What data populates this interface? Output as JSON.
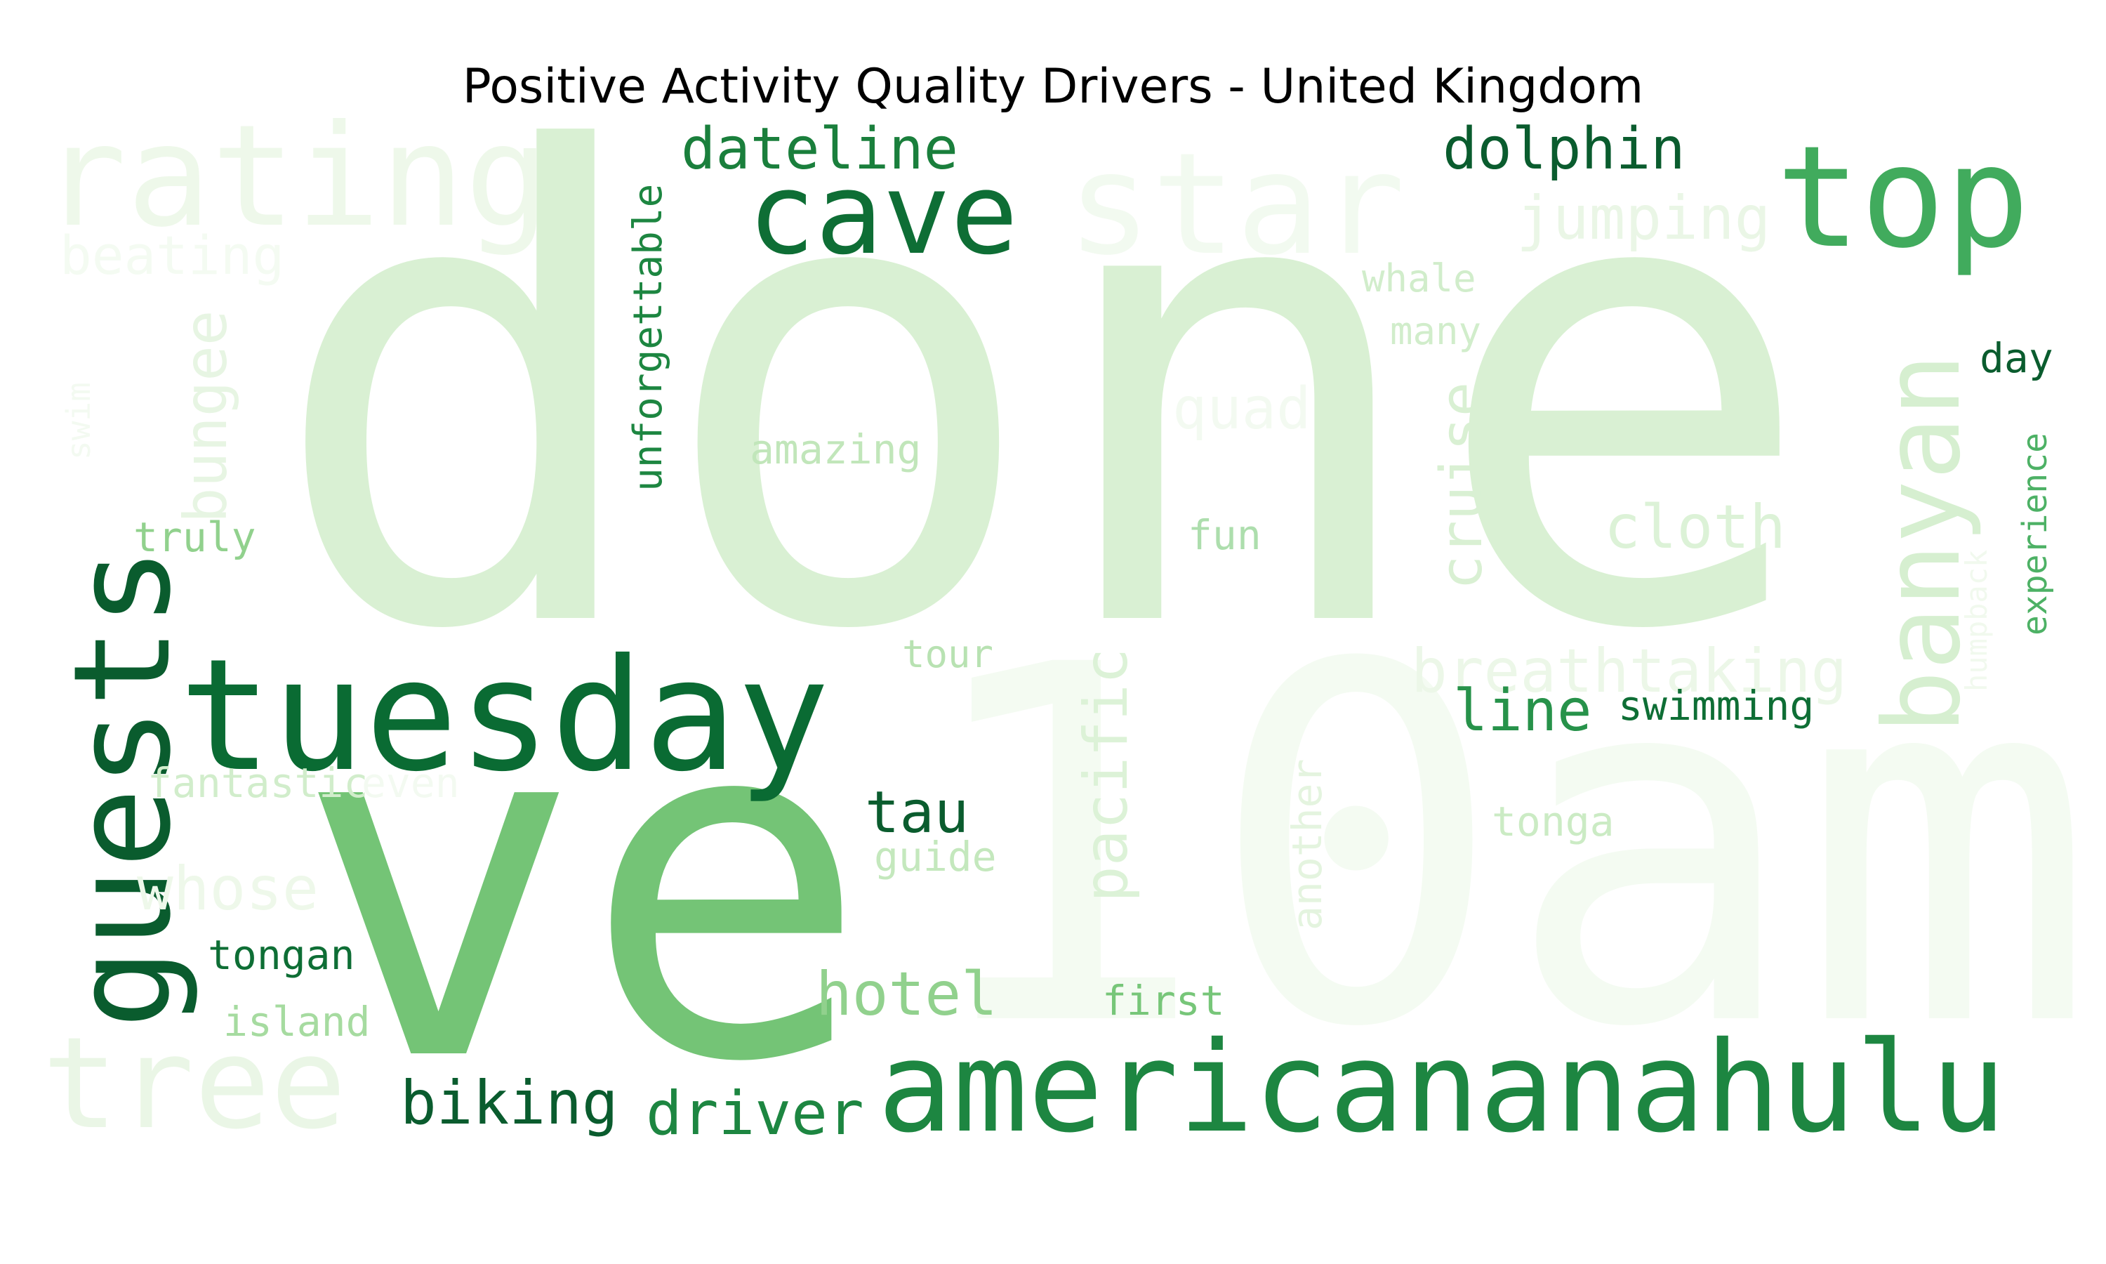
{
  "title": "Positive Activity Quality Drivers - United Kingdom",
  "chart_data": {
    "type": "wordcloud",
    "title": "Positive Activity Quality Drivers - United Kingdom",
    "colormap": "Greens",
    "words": [
      {
        "text": "done",
        "color": "#d9f0d3"
      },
      {
        "text": "10am",
        "color": "#f4fbf2"
      },
      {
        "text": "ve",
        "color": "#74c476"
      },
      {
        "text": "rating",
        "color": "#eef8ea"
      },
      {
        "text": "star",
        "color": "#f2faf0"
      },
      {
        "text": "cave",
        "color": "#0e6e35"
      },
      {
        "text": "top",
        "color": "#41ab5d"
      },
      {
        "text": "dateline",
        "color": "#1a7f3c"
      },
      {
        "text": "dolphin",
        "color": "#0a5c2e"
      },
      {
        "text": "jumping",
        "color": "#eaf6e6"
      },
      {
        "text": "beating",
        "color": "#f4fbf2"
      },
      {
        "text": "unforgettable",
        "color": "#1d8641"
      },
      {
        "text": "whale",
        "color": "#d1edcb"
      },
      {
        "text": "many",
        "color": "#d1edcb"
      },
      {
        "text": "bungee",
        "color": "#e7f5e3"
      },
      {
        "text": "swim",
        "color": "#f3faf1"
      },
      {
        "text": "quad",
        "color": "#f3faf1"
      },
      {
        "text": "amazing",
        "color": "#c1e6ba"
      },
      {
        "text": "cruise",
        "color": "#d9f0d3"
      },
      {
        "text": "banyan",
        "color": "#d6efd0"
      },
      {
        "text": "day",
        "color": "#0a5c2e"
      },
      {
        "text": "experience",
        "color": "#4db165"
      },
      {
        "text": "humpback",
        "color": "#f1f9ee"
      },
      {
        "text": "truly",
        "color": "#91d18d"
      },
      {
        "text": "fun",
        "color": "#addead"
      },
      {
        "text": "cloth",
        "color": "#dcf2d7"
      },
      {
        "text": "guests",
        "color": "#0a5c2e"
      },
      {
        "text": "tour",
        "color": "#b8e2b2"
      },
      {
        "text": "tuesday",
        "color": "#0a6b33"
      },
      {
        "text": "breathtaking",
        "color": "#ecf7e8"
      },
      {
        "text": "line",
        "color": "#27924a"
      },
      {
        "text": "swimming",
        "color": "#0e6e35"
      },
      {
        "text": "fantastic",
        "color": "#d1edcb"
      },
      {
        "text": "even",
        "color": "#f3faf1"
      },
      {
        "text": "pacific",
        "color": "#dcf2d7"
      },
      {
        "text": "tau",
        "color": "#0a5c2e"
      },
      {
        "text": "another",
        "color": "#e4f4df"
      },
      {
        "text": "tonga",
        "color": "#cbebc4"
      },
      {
        "text": "guide",
        "color": "#c4e8bd"
      },
      {
        "text": "whose",
        "color": "#eef8ea"
      },
      {
        "text": "tongan",
        "color": "#0e6e35"
      },
      {
        "text": "hotel",
        "color": "#91d18d"
      },
      {
        "text": "first",
        "color": "#77c679"
      },
      {
        "text": "island",
        "color": "#a6dba0"
      },
      {
        "text": "tree",
        "color": "#eaf6e6"
      },
      {
        "text": "biking",
        "color": "#0a5c2e"
      },
      {
        "text": "driver",
        "color": "#1d8641"
      },
      {
        "text": "americananahulu",
        "color": "#1d8641"
      }
    ]
  }
}
